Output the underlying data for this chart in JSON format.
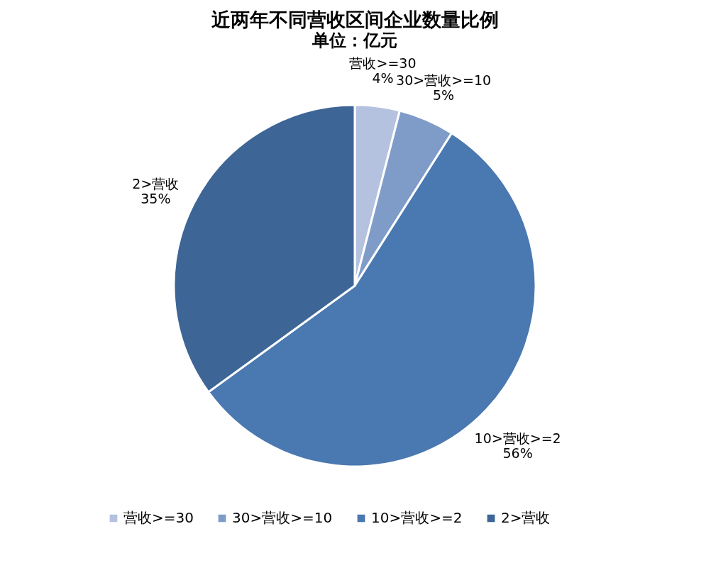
{
  "chart_data": {
    "type": "pie",
    "title": "近两年不同营收区间企业数量比例",
    "subtitle": "单位：亿元",
    "categories": [
      "营收>=30",
      "30>营收>=10",
      "10>营收>=2",
      "2>营收"
    ],
    "values": [
      4,
      5,
      56,
      35
    ],
    "value_labels": [
      "4%",
      "5%",
      "56%",
      "35%"
    ],
    "colors": [
      "#b4c2df",
      "#7f9cc9",
      "#4a78b0",
      "#3d6595"
    ],
    "legend": "bottom"
  }
}
